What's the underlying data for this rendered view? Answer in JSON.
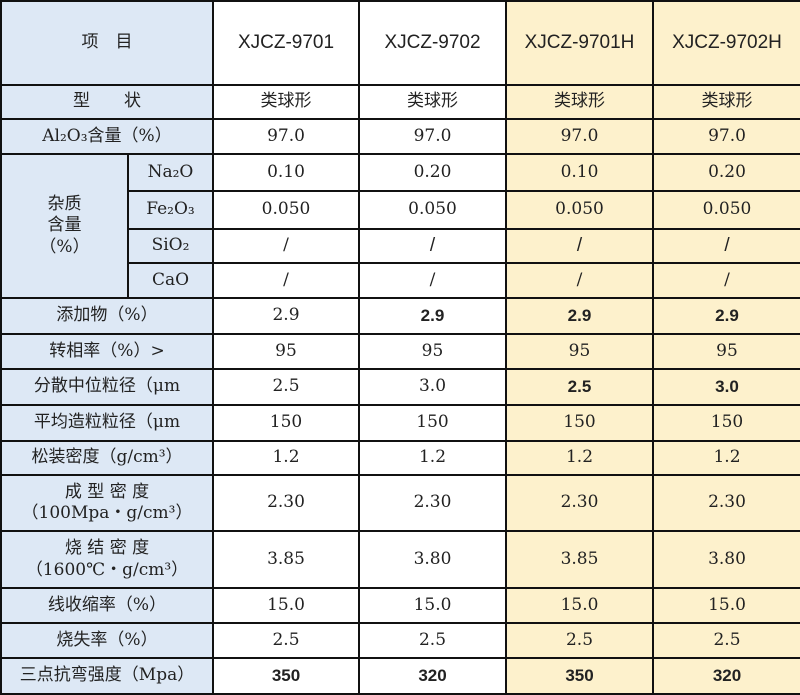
{
  "header": {
    "item_label": "项　目",
    "columns": [
      "XJCZ-9701",
      "XJCZ-9702",
      "XJCZ-9701H",
      "XJCZ-9702H"
    ]
  },
  "colors": {
    "label_bg": "#dde8f5",
    "highlight_bg": "#fdf1cc",
    "border": "#111111"
  },
  "rows": [
    {
      "label": "型　　状",
      "values": [
        "类球形",
        "类球形",
        "类球形",
        "类球形"
      ]
    },
    {
      "label": "Al₂O₃含量（%）",
      "values": [
        "97.0",
        "97.0",
        "97.0",
        "97.0"
      ]
    }
  ],
  "impurity": {
    "group_label_1": "杂质",
    "group_label_2": "含量",
    "group_label_3": "（%）",
    "items": [
      {
        "label": "Na₂O",
        "values": [
          "0.10",
          "0.20",
          "0.10",
          "0.20"
        ]
      },
      {
        "label": "Fe₂O₃",
        "values": [
          "0.050",
          "0.050",
          "0.050",
          "0.050"
        ]
      },
      {
        "label": "SiO₂",
        "values": [
          "/",
          "/",
          "/",
          "/"
        ]
      },
      {
        "label": "CaO",
        "values": [
          "/",
          "/",
          "/",
          "/"
        ]
      }
    ]
  },
  "rows2": [
    {
      "label": "添加物（%）",
      "values": [
        "2.9",
        "2.9",
        "2.9",
        "2.9"
      ]
    },
    {
      "label": "转相率（%）>",
      "values": [
        "95",
        "95",
        "95",
        "95"
      ]
    },
    {
      "label": "分散中位粒径（μm",
      "values": [
        "2.5",
        "3.0",
        "2.5",
        "3.0"
      ]
    },
    {
      "label": "平均造粒粒径（μm",
      "values": [
        "150",
        "150",
        "150",
        "150"
      ]
    },
    {
      "label": "松装密度（g/cm³）",
      "values": [
        "1.2",
        "1.2",
        "1.2",
        "1.2"
      ]
    },
    {
      "label": "成 型 密 度",
      "label2": "（100Mpa・g/cm³）",
      "values": [
        "2.30",
        "2.30",
        "2.30",
        "2.30"
      ]
    },
    {
      "label": "烧 结 密 度",
      "label2": "（1600℃・g/cm³）",
      "values": [
        "3.85",
        "3.80",
        "3.85",
        "3.80"
      ]
    },
    {
      "label": "线收缩率（%）",
      "values": [
        "15.0",
        "15.0",
        "15.0",
        "15.0"
      ]
    },
    {
      "label": "烧失率（%）",
      "values": [
        "2.5",
        "2.5",
        "2.5",
        "2.5"
      ]
    },
    {
      "label": "三点抗弯强度（Mpa）",
      "values": [
        "350",
        "320",
        "350",
        "320"
      ]
    }
  ]
}
